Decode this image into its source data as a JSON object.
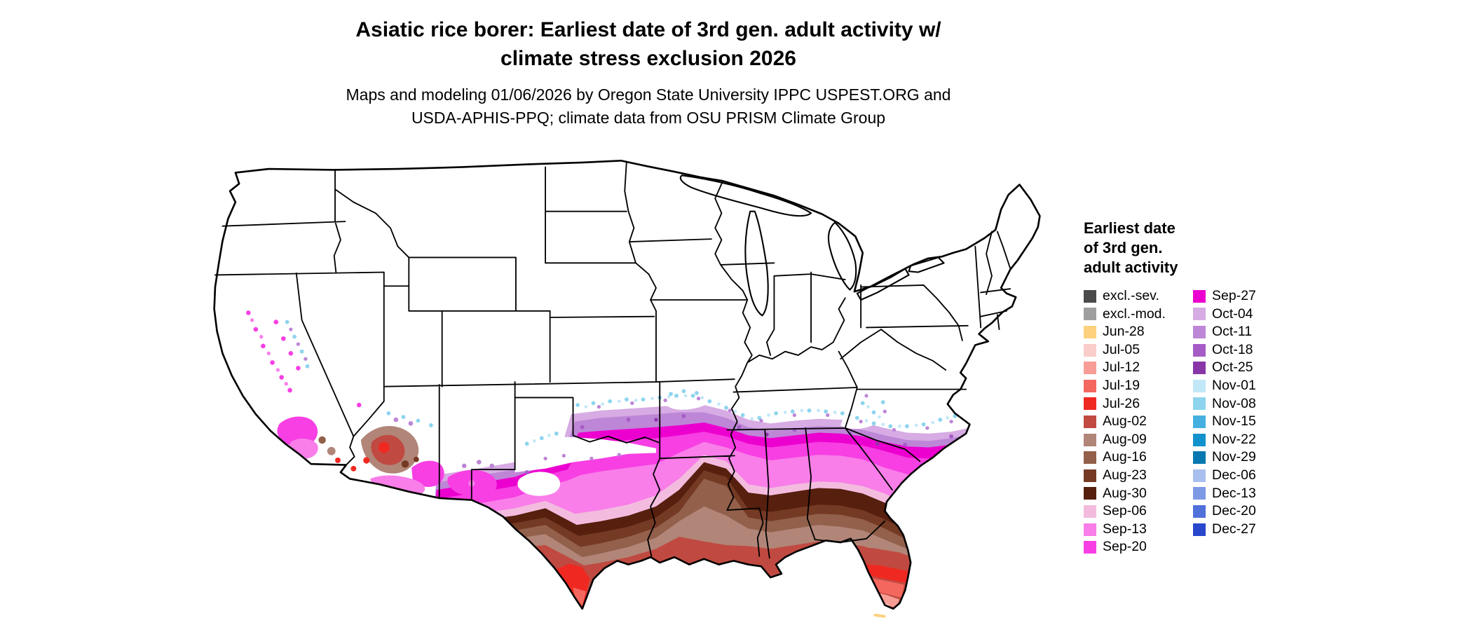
{
  "figure": {
    "title_line1": "Asiatic rice borer: Earliest date of 3rd gen. adult activity w/",
    "title_line2": "climate stress exclusion 2026",
    "subtitle_line1": "Maps and modeling 01/06/2026 by Oregon State University IPPC USPEST.ORG and",
    "subtitle_line2": "USDA-APHIS-PPQ; climate data from OSU PRISM Climate Group"
  },
  "legend": {
    "title_lines": [
      "Earliest date",
      "of 3rd gen.",
      "adult activity"
    ],
    "columns": [
      [
        {
          "label": "excl.-sev.",
          "color": "#4a4a4a"
        },
        {
          "label": "excl.-mod.",
          "color": "#9e9e9e"
        },
        {
          "label": "Jun-28",
          "color": "#fdd17e"
        },
        {
          "label": "Jul-05",
          "color": "#f9cdc9"
        },
        {
          "label": "Jul-12",
          "color": "#f79d96"
        },
        {
          "label": "Jul-19",
          "color": "#f4675f"
        },
        {
          "label": "Jul-26",
          "color": "#ef2922"
        },
        {
          "label": "Aug-02",
          "color": "#c04a41"
        },
        {
          "label": "Aug-09",
          "color": "#b18578"
        },
        {
          "label": "Aug-16",
          "color": "#92604b"
        },
        {
          "label": "Aug-23",
          "color": "#753a24"
        },
        {
          "label": "Aug-30",
          "color": "#571f0e"
        },
        {
          "label": "Sep-06",
          "color": "#f3bcdf"
        },
        {
          "label": "Sep-13",
          "color": "#f97ee9"
        },
        {
          "label": "Sep-20",
          "color": "#f73fe3"
        }
      ],
      [
        {
          "label": "Sep-27",
          "color": "#ec00cf"
        },
        {
          "label": "Oct-04",
          "color": "#d7abe3"
        },
        {
          "label": "Oct-11",
          "color": "#bd86d6"
        },
        {
          "label": "Oct-18",
          "color": "#a55cc6"
        },
        {
          "label": "Oct-25",
          "color": "#8936a8"
        },
        {
          "label": "Nov-01",
          "color": "#c2e8f7"
        },
        {
          "label": "Nov-08",
          "color": "#8ed4ee"
        },
        {
          "label": "Nov-15",
          "color": "#45b0e0"
        },
        {
          "label": "Nov-22",
          "color": "#1292cc"
        },
        {
          "label": "Nov-29",
          "color": "#0878b0"
        },
        {
          "label": "Dec-06",
          "color": "#a9bfee"
        },
        {
          "label": "Dec-13",
          "color": "#7e99e6"
        },
        {
          "label": "Dec-20",
          "color": "#5070da"
        },
        {
          "label": "Dec-27",
          "color": "#2847cc"
        }
      ]
    ]
  },
  "chart_data": {
    "type": "choropleth-map",
    "region": "Conterminous United States",
    "variable": "Earliest date of 3rd gen. adult activity (with climate stress exclusion), 2026",
    "classes": [
      {
        "label": "excl.-sev.",
        "color": "#4a4a4a"
      },
      {
        "label": "excl.-mod.",
        "color": "#9e9e9e"
      },
      {
        "label": "Jun-28",
        "color": "#fdd17e"
      },
      {
        "label": "Jul-05",
        "color": "#f9cdc9"
      },
      {
        "label": "Jul-12",
        "color": "#f79d96"
      },
      {
        "label": "Jul-19",
        "color": "#f4675f"
      },
      {
        "label": "Jul-26",
        "color": "#ef2922"
      },
      {
        "label": "Aug-02",
        "color": "#c04a41"
      },
      {
        "label": "Aug-09",
        "color": "#b18578"
      },
      {
        "label": "Aug-16",
        "color": "#92604b"
      },
      {
        "label": "Aug-23",
        "color": "#753a24"
      },
      {
        "label": "Aug-30",
        "color": "#571f0e"
      },
      {
        "label": "Sep-06",
        "color": "#f3bcdf"
      },
      {
        "label": "Sep-13",
        "color": "#f97ee9"
      },
      {
        "label": "Sep-20",
        "color": "#f73fe3"
      },
      {
        "label": "Sep-27",
        "color": "#ec00cf"
      },
      {
        "label": "Oct-04",
        "color": "#d7abe3"
      },
      {
        "label": "Oct-11",
        "color": "#bd86d6"
      },
      {
        "label": "Oct-18",
        "color": "#a55cc6"
      },
      {
        "label": "Oct-25",
        "color": "#8936a8"
      },
      {
        "label": "Nov-01",
        "color": "#c2e8f7"
      },
      {
        "label": "Nov-08",
        "color": "#8ed4ee"
      },
      {
        "label": "Nov-15",
        "color": "#45b0e0"
      },
      {
        "label": "Nov-22",
        "color": "#1292cc"
      },
      {
        "label": "Nov-29",
        "color": "#0878b0"
      },
      {
        "label": "Dec-06",
        "color": "#a9bfee"
      },
      {
        "label": "Dec-13",
        "color": "#7e99e6"
      },
      {
        "label": "Dec-20",
        "color": "#5070da"
      },
      {
        "label": "Dec-27",
        "color": "#2847cc"
      }
    ],
    "spatial_pattern": "Earliest dates (Jun-Jul, orange/red) at south Florida tip and south Texas; August browns along Gulf Coast band; September magenta across central Texas through the Southeast coastal plain; October purples along the northern fringe; November cyan speckles at the cold margin; northern two-thirds of the US has no 3rd generation (white)."
  }
}
